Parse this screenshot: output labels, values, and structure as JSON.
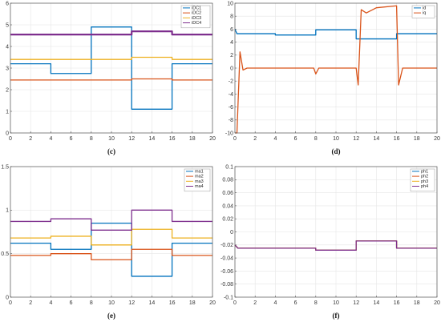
{
  "chart_data": [
    {
      "type": "line",
      "caption": "(c)",
      "xlim": [
        0,
        20
      ],
      "ylim": [
        0,
        6
      ],
      "xticks": [
        0,
        2,
        4,
        6,
        8,
        10,
        12,
        14,
        16,
        18,
        20
      ],
      "yticks": [
        0,
        1,
        2,
        3,
        4,
        5,
        6
      ],
      "grid": true,
      "legend_position": "top-right",
      "series": [
        {
          "name": "iDC1",
          "color": "#0072bd",
          "points": [
            [
              0,
              3.2
            ],
            [
              4,
              3.2
            ],
            [
              4,
              2.75
            ],
            [
              8,
              2.75
            ],
            [
              8,
              4.9
            ],
            [
              12,
              4.9
            ],
            [
              12,
              1.1
            ],
            [
              16,
              1.1
            ],
            [
              16,
              3.2
            ],
            [
              20,
              3.2
            ]
          ]
        },
        {
          "name": "iDC2",
          "color": "#d95319",
          "points": [
            [
              0,
              2.45
            ],
            [
              12,
              2.45
            ],
            [
              12,
              2.5
            ],
            [
              16,
              2.5
            ],
            [
              16,
              2.45
            ],
            [
              20,
              2.45
            ]
          ]
        },
        {
          "name": "iDC3",
          "color": "#edb120",
          "points": [
            [
              0,
              3.4
            ],
            [
              12,
              3.4
            ],
            [
              12,
              3.5
            ],
            [
              16,
              3.5
            ],
            [
              16,
              3.4
            ],
            [
              20,
              3.4
            ]
          ]
        },
        {
          "name": "iDC4",
          "color": "#7e2f8e",
          "points": [
            [
              0,
              4.55
            ],
            [
              12,
              4.55
            ],
            [
              12,
              4.7
            ],
            [
              16,
              4.7
            ],
            [
              16,
              4.55
            ],
            [
              20,
              4.55
            ]
          ]
        }
      ]
    },
    {
      "type": "line",
      "caption": "(d)",
      "xlim": [
        0,
        20
      ],
      "ylim": [
        -10,
        10
      ],
      "xticks": [
        0,
        2,
        4,
        6,
        8,
        10,
        12,
        14,
        16,
        18,
        20
      ],
      "yticks": [
        -10,
        -8,
        -6,
        -4,
        -2,
        0,
        2,
        4,
        6,
        8,
        10
      ],
      "grid": true,
      "legend_position": "top-right",
      "series": [
        {
          "name": "id",
          "color": "#0072bd",
          "points": [
            [
              0,
              6
            ],
            [
              0.2,
              5.3
            ],
            [
              4,
              5.3
            ],
            [
              4,
              5.1
            ],
            [
              8,
              5.1
            ],
            [
              8,
              5.9
            ],
            [
              12,
              5.9
            ],
            [
              12,
              4.5
            ],
            [
              16,
              4.5
            ],
            [
              16,
              5.3
            ],
            [
              20,
              5.3
            ]
          ]
        },
        {
          "name": "iq",
          "color": "#d95319",
          "points": [
            [
              0,
              -10
            ],
            [
              0.2,
              -10
            ],
            [
              0.5,
              2.5
            ],
            [
              0.8,
              -0.3
            ],
            [
              1.2,
              0
            ],
            [
              7.8,
              0
            ],
            [
              8,
              -0.9
            ],
            [
              8.3,
              0
            ],
            [
              12,
              0
            ],
            [
              12.2,
              -2.6
            ],
            [
              12.5,
              9
            ],
            [
              13,
              8.5
            ],
            [
              14,
              9.3
            ],
            [
              16,
              9.6
            ],
            [
              16.2,
              -2.6
            ],
            [
              16.6,
              0
            ],
            [
              20,
              0
            ]
          ]
        }
      ]
    },
    {
      "type": "line",
      "caption": "(e)",
      "xlim": [
        0,
        20
      ],
      "ylim": [
        0,
        1.5
      ],
      "xticks": [
        0,
        2,
        4,
        6,
        8,
        10,
        12,
        14,
        16,
        18,
        20
      ],
      "yticks": [
        0,
        0.5,
        1,
        1.5
      ],
      "grid": true,
      "legend_position": "top-right",
      "series": [
        {
          "name": "ma1",
          "color": "#0072bd",
          "points": [
            [
              0,
              0.62
            ],
            [
              4,
              0.62
            ],
            [
              4,
              0.55
            ],
            [
              8,
              0.55
            ],
            [
              8,
              0.85
            ],
            [
              12,
              0.85
            ],
            [
              12,
              0.24
            ],
            [
              16,
              0.24
            ],
            [
              16,
              0.62
            ],
            [
              20,
              0.62
            ]
          ]
        },
        {
          "name": "ma2",
          "color": "#d95319",
          "points": [
            [
              0,
              0.48
            ],
            [
              4,
              0.48
            ],
            [
              4,
              0.5
            ],
            [
              8,
              0.5
            ],
            [
              8,
              0.43
            ],
            [
              12,
              0.43
            ],
            [
              12,
              0.55
            ],
            [
              16,
              0.55
            ],
            [
              16,
              0.48
            ],
            [
              20,
              0.48
            ]
          ]
        },
        {
          "name": "ma3",
          "color": "#edb120",
          "points": [
            [
              0,
              0.68
            ],
            [
              4,
              0.68
            ],
            [
              4,
              0.7
            ],
            [
              8,
              0.7
            ],
            [
              8,
              0.6
            ],
            [
              12,
              0.6
            ],
            [
              12,
              0.78
            ],
            [
              16,
              0.78
            ],
            [
              16,
              0.68
            ],
            [
              20,
              0.68
            ]
          ]
        },
        {
          "name": "ma4",
          "color": "#7e2f8e",
          "points": [
            [
              0,
              0.87
            ],
            [
              4,
              0.87
            ],
            [
              4,
              0.9
            ],
            [
              8,
              0.9
            ],
            [
              8,
              0.77
            ],
            [
              12,
              0.77
            ],
            [
              12,
              1.0
            ],
            [
              16,
              1.0
            ],
            [
              16,
              0.87
            ],
            [
              20,
              0.87
            ]
          ]
        }
      ]
    },
    {
      "type": "line",
      "caption": "(f)",
      "xlim": [
        0,
        20
      ],
      "ylim": [
        -0.1,
        0.1
      ],
      "xticks": [
        0,
        2,
        4,
        6,
        8,
        10,
        12,
        14,
        16,
        18,
        20
      ],
      "yticks": [
        -0.1,
        -0.08,
        -0.06,
        -0.04,
        -0.02,
        0,
        0.02,
        0.04,
        0.06,
        0.08,
        0.1
      ],
      "grid": true,
      "legend_position": "top-right",
      "series": [
        {
          "name": "ph1",
          "color": "#0072bd",
          "points": [
            [
              0,
              -0.02
            ],
            [
              0.3,
              -0.025
            ],
            [
              8,
              -0.025
            ],
            [
              8,
              -0.028
            ],
            [
              12,
              -0.028
            ],
            [
              12,
              -0.014
            ],
            [
              16,
              -0.014
            ],
            [
              16,
              -0.025
            ],
            [
              20,
              -0.025
            ]
          ]
        },
        {
          "name": "ph2",
          "color": "#d95319",
          "points": [
            [
              0,
              -0.02
            ],
            [
              0.3,
              -0.025
            ],
            [
              8,
              -0.025
            ],
            [
              8,
              -0.028
            ],
            [
              12,
              -0.028
            ],
            [
              12,
              -0.014
            ],
            [
              16,
              -0.014
            ],
            [
              16,
              -0.025
            ],
            [
              20,
              -0.025
            ]
          ]
        },
        {
          "name": "ph3",
          "color": "#edb120",
          "points": [
            [
              0,
              -0.02
            ],
            [
              0.3,
              -0.025
            ],
            [
              8,
              -0.025
            ],
            [
              8,
              -0.028
            ],
            [
              12,
              -0.028
            ],
            [
              12,
              -0.014
            ],
            [
              16,
              -0.014
            ],
            [
              16,
              -0.025
            ],
            [
              20,
              -0.025
            ]
          ]
        },
        {
          "name": "ph4",
          "color": "#7e2f8e",
          "points": [
            [
              0,
              -0.02
            ],
            [
              0.3,
              -0.025
            ],
            [
              8,
              -0.025
            ],
            [
              8,
              -0.028
            ],
            [
              12,
              -0.028
            ],
            [
              12,
              -0.014
            ],
            [
              16,
              -0.014
            ],
            [
              16,
              -0.025
            ],
            [
              20,
              -0.025
            ]
          ]
        }
      ]
    }
  ]
}
